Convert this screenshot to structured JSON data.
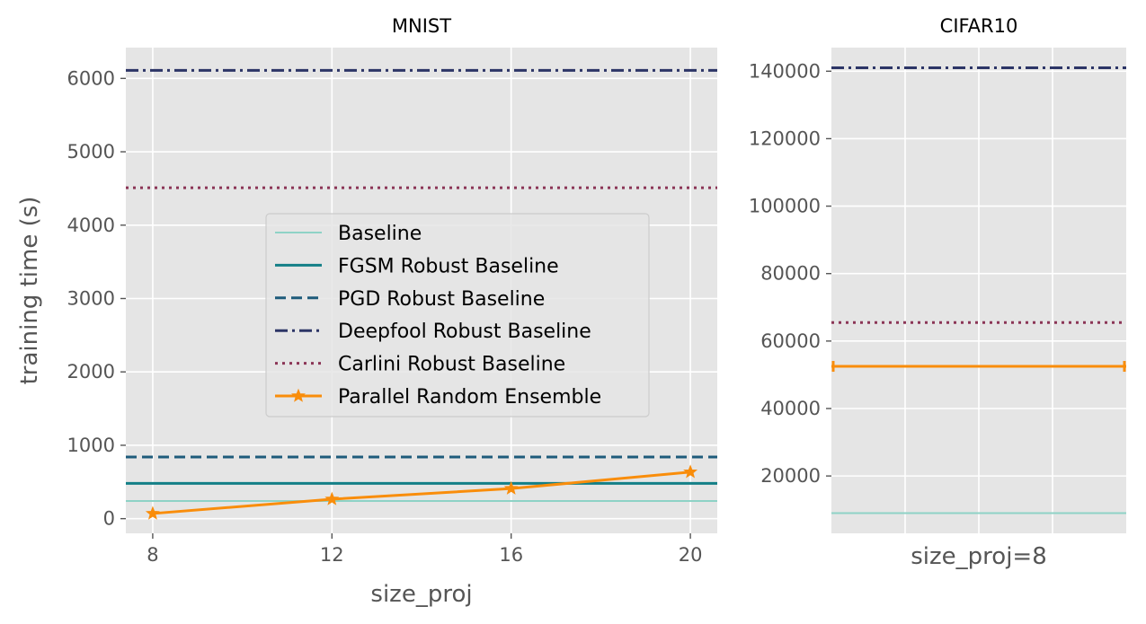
{
  "chart_data": [
    {
      "type": "line",
      "title": "MNIST",
      "xlabel": "size_proj",
      "ylabel": "training time (s)",
      "x": [
        8,
        12,
        16,
        20
      ],
      "xticks": [
        "8",
        "12",
        "16",
        "20"
      ],
      "xlim": [
        7.4,
        20.6
      ],
      "ylim": [
        -200,
        6420
      ],
      "yticks": [
        0,
        1000,
        2000,
        3000,
        4000,
        5000,
        6000
      ],
      "ytick_labels": [
        "0",
        "1000",
        "2000",
        "3000",
        "4000",
        "5000",
        "6000"
      ],
      "grid": true,
      "legend_position": "center",
      "series": [
        {
          "name": "Baseline",
          "style": "solid",
          "marker": "",
          "color": "#8ed2c6",
          "values": [
            240,
            240,
            240,
            240
          ]
        },
        {
          "name": "FGSM Robust Baseline",
          "style": "solid",
          "marker": "",
          "color": "#137f87",
          "values": [
            480,
            480,
            480,
            480
          ]
        },
        {
          "name": "PGD Robust Baseline",
          "style": "dashed",
          "marker": "",
          "color": "#1e5b7b",
          "values": [
            840,
            840,
            840,
            840
          ]
        },
        {
          "name": "Deepfool Robust Baseline",
          "style": "dashdot",
          "marker": "",
          "color": "#2c3566",
          "values": [
            6110,
            6110,
            6110,
            6110
          ]
        },
        {
          "name": "Carlini Robust Baseline",
          "style": "dotted",
          "marker": "",
          "color": "#8b3556",
          "values": [
            4510,
            4510,
            4510,
            4510
          ]
        },
        {
          "name": "Parallel Random Ensemble",
          "style": "solid",
          "marker": "star",
          "color": "#f98d0b",
          "values": [
            70,
            265,
            410,
            635
          ]
        }
      ]
    },
    {
      "type": "line",
      "title": "CIFAR10",
      "xlabel": "size_proj=8",
      "ylabel": "",
      "ylim": [
        3000,
        147000
      ],
      "yticks": [
        20000,
        40000,
        60000,
        80000,
        100000,
        120000,
        140000
      ],
      "ytick_labels": [
        "20000",
        "40000",
        "60000",
        "80000",
        "100000",
        "120000",
        "140000"
      ],
      "grid": true,
      "series": [
        {
          "name": "Baseline",
          "style": "solid",
          "color": "#8ed2c6",
          "value": 9000
        },
        {
          "name": "Carlini Robust Baseline",
          "style": "dotted",
          "color": "#8b3556",
          "value": 65500
        },
        {
          "name": "Deepfool Robust Baseline",
          "style": "dashdot",
          "color": "#2c3566",
          "value": 141000
        },
        {
          "name": "Parallel Random Ensemble",
          "style": "solid",
          "marker": "tick",
          "color": "#f98d0b",
          "value": 52500
        }
      ]
    }
  ]
}
